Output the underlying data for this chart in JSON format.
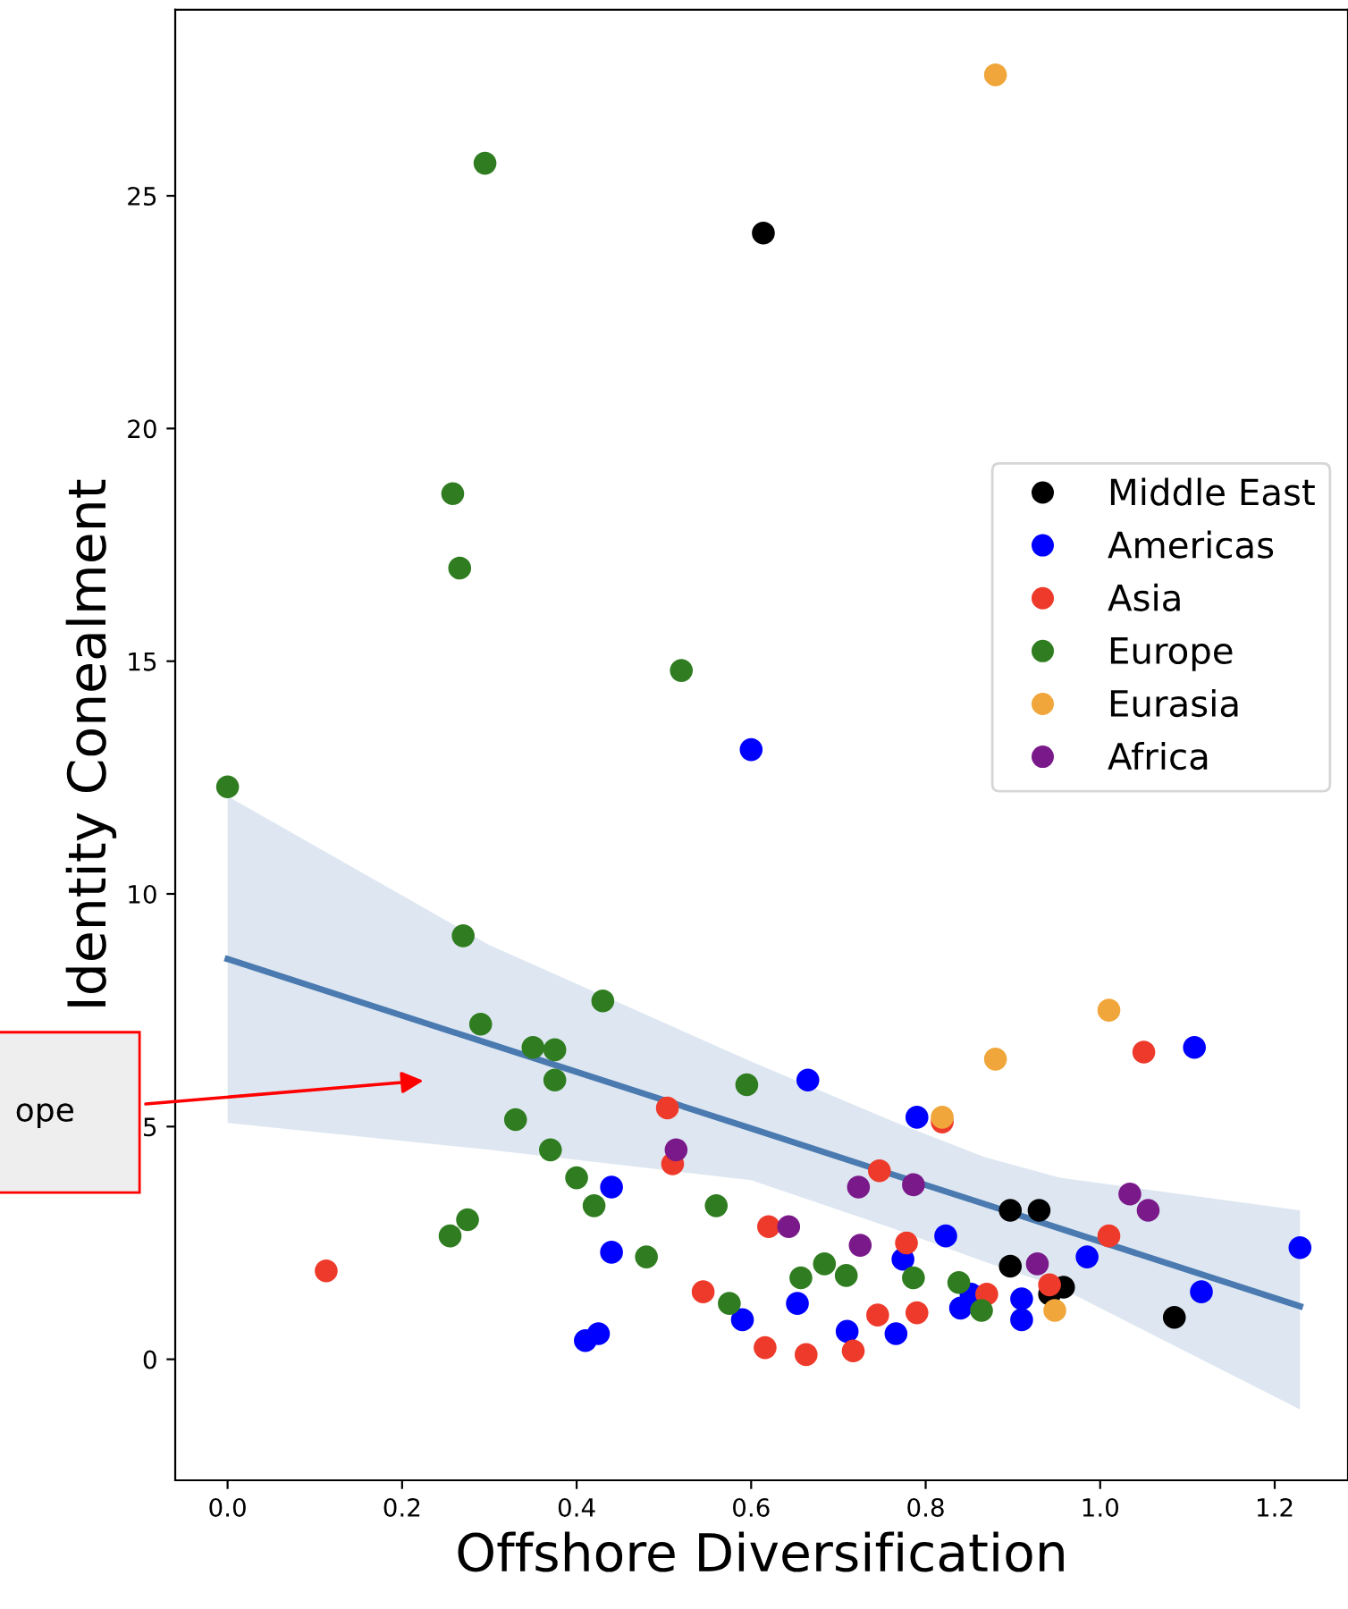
{
  "chart_data": {
    "type": "scatter",
    "xlabel": "Offshore Diversification",
    "ylabel": "Identity Conealment",
    "xlim": [
      -0.06,
      1.284
    ],
    "ylim": [
      -2.6,
      29
    ],
    "xticks": [
      {
        "value": 0,
        "label": "0.0"
      },
      {
        "value": 0.2,
        "label": "0.2"
      },
      {
        "value": 0.4,
        "label": "0.4"
      },
      {
        "value": 0.6,
        "label": "0.6"
      },
      {
        "value": 0.8,
        "label": "0.8"
      },
      {
        "value": 1.0,
        "label": "1.0"
      },
      {
        "value": 1.2,
        "label": "1.2"
      }
    ],
    "yticks": [
      0,
      5,
      10,
      15,
      20,
      25
    ],
    "grid": false,
    "legend": "right",
    "marker": "circle",
    "annotations": [
      "ope"
    ],
    "series": [
      {
        "type": "line",
        "marker": "none",
        "color": "#4a7ab0",
        "x": [
          0,
          0.3,
          0.6,
          0.764,
          0.867,
          0.954,
          1.229
        ],
        "values": [
          8.6,
          6.78,
          4.96,
          3.96,
          3.34,
          2.81,
          1.14
        ],
        "lower": [
          5.08,
          4.5,
          3.85,
          2.8,
          2.1,
          1.54,
          -1.08
        ],
        "upper": [
          12.1,
          8.9,
          6.4,
          5.1,
          4.35,
          3.9,
          3.2
        ]
      },
      {
        "name": "Middle East",
        "color": "#000000",
        "x": [
          0.614,
          0.897,
          0.93,
          0.897,
          0.958,
          0.942,
          1.085
        ],
        "values": [
          24.2,
          3.2,
          3.2,
          2.0,
          1.55,
          1.4,
          0.9
        ]
      },
      {
        "name": "Americas",
        "color": "#0000ff",
        "x": [
          0.6,
          0.44,
          0.44,
          0.41,
          0.425,
          0.59,
          0.665,
          0.79,
          0.823,
          0.774,
          0.653,
          0.71,
          0.766,
          0.84,
          0.91,
          0.91,
          0.985,
          1.116,
          1.229,
          1.108,
          0.852
        ],
        "values": [
          13.1,
          3.7,
          2.3,
          0.4,
          0.55,
          0.85,
          6.0,
          5.2,
          2.65,
          2.15,
          1.2,
          0.6,
          0.55,
          1.1,
          1.3,
          0.85,
          2.2,
          1.45,
          2.4,
          6.7,
          1.4
        ]
      },
      {
        "name": "Asia",
        "color": "#ee3a2a",
        "x": [
          0.113,
          0.504,
          0.51,
          0.545,
          0.747,
          0.62,
          0.778,
          0.745,
          0.79,
          0.616,
          0.663,
          0.717,
          0.87,
          0.942,
          1.01,
          1.05,
          0.819
        ],
        "values": [
          1.9,
          5.4,
          4.2,
          1.45,
          4.05,
          2.85,
          2.5,
          0.95,
          1.0,
          0.25,
          0.1,
          0.18,
          1.4,
          1.6,
          2.65,
          6.6,
          5.1
        ]
      },
      {
        "name": "Europe",
        "color": "#2f7d20",
        "x": [
          0.0,
          0.295,
          0.258,
          0.266,
          0.52,
          0.27,
          0.29,
          0.43,
          0.35,
          0.375,
          0.375,
          0.33,
          0.37,
          0.4,
          0.42,
          0.275,
          0.255,
          0.48,
          0.56,
          0.575,
          0.595,
          0.657,
          0.684,
          0.709,
          0.786,
          0.838,
          0.864
        ],
        "values": [
          12.3,
          25.7,
          18.6,
          17.0,
          14.8,
          9.1,
          7.2,
          7.7,
          6.7,
          6.65,
          6.0,
          5.15,
          4.5,
          3.9,
          3.3,
          3.0,
          2.65,
          2.2,
          3.3,
          1.2,
          5.9,
          1.75,
          2.05,
          1.8,
          1.75,
          1.65,
          1.05
        ]
      },
      {
        "name": "Eurasia",
        "color": "#f0a63a",
        "x": [
          0.88,
          1.01,
          0.88,
          0.819,
          0.948
        ],
        "values": [
          27.6,
          7.5,
          6.45,
          5.2,
          1.05
        ]
      },
      {
        "name": "Africa",
        "color": "#7a1a8a",
        "x": [
          0.514,
          0.723,
          0.786,
          0.643,
          0.725,
          0.928,
          1.034,
          1.055
        ],
        "values": [
          4.5,
          3.7,
          3.75,
          2.85,
          2.45,
          2.05,
          3.55,
          3.2
        ]
      }
    ]
  }
}
